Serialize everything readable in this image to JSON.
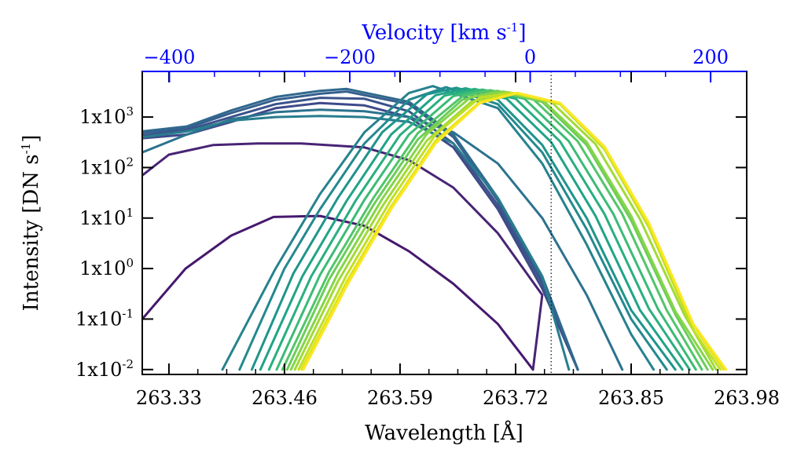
{
  "chart_data": {
    "type": "line",
    "title": "",
    "xlabel": "Wavelength [Å]",
    "ylabel": "Intensity [DN s",
    "ylabel_sup": "-1",
    "ylabel_end": "]",
    "x2label": "Velocity [km s",
    "x2label_sup": "-1",
    "x2label_end": "]",
    "xlim": [
      263.3,
      263.98
    ],
    "ylog": true,
    "ylim": [
      0.008,
      8000
    ],
    "x2lim": [
      -430,
      240
    ],
    "x_ticks": [
      {
        "value": 263.33,
        "label": "263.33"
      },
      {
        "value": 263.46,
        "label": "263.46"
      },
      {
        "value": 263.59,
        "label": "263.59"
      },
      {
        "value": 263.72,
        "label": "263.72"
      },
      {
        "value": 263.85,
        "label": "263.85"
      },
      {
        "value": 263.98,
        "label": "263.98"
      }
    ],
    "y_ticks": [
      {
        "value": 0.01,
        "base": "1x10",
        "exp": "-2"
      },
      {
        "value": 0.1,
        "base": "1x10",
        "exp": "-1"
      },
      {
        "value": 1,
        "base": "1x10",
        "exp": "0"
      },
      {
        "value": 10,
        "base": "1x10",
        "exp": "1"
      },
      {
        "value": 100,
        "base": "1x10",
        "exp": "2"
      },
      {
        "value": 1000,
        "base": "1x10",
        "exp": "3"
      }
    ],
    "x2_ticks": [
      {
        "value": -400,
        "label": "−400"
      },
      {
        "value": -200,
        "label": "−200"
      },
      {
        "value": 0,
        "label": "0"
      },
      {
        "value": 200,
        "label": "200"
      }
    ],
    "reference_line": {
      "x": 263.76,
      "style": "dotted"
    },
    "axis_color_top": "#0000ff",
    "series": [
      {
        "x": [
          263.3,
          263.3487,
          263.4,
          263.4477,
          263.5,
          263.55,
          263.6,
          263.65,
          263.7,
          263.7396
        ],
        "y": [
          0.1,
          1,
          4.5,
          10.5,
          11,
          7,
          2.2,
          0.5,
          0.08,
          0.01
        ],
        "color": "#46186e"
      },
      {
        "x": [
          263.3,
          263.33,
          263.38,
          263.43,
          263.4787,
          263.55,
          263.6,
          263.65,
          263.7,
          263.75,
          263.7396
        ],
        "y": [
          70,
          180,
          280,
          300,
          300,
          250,
          140,
          40,
          5,
          0.3,
          0.01
        ],
        "color": "#482475"
      },
      {
        "x": [
          263.3,
          263.35,
          263.4,
          263.45,
          263.5,
          263.55,
          263.6,
          263.65,
          263.7,
          263.75,
          263.79
        ],
        "y": [
          380,
          450,
          800,
          1500,
          1900,
          1700,
          1000,
          250,
          15,
          0.4,
          0.01
        ],
        "color": "#3e4a89"
      },
      {
        "x": [
          263.3,
          263.35,
          263.4,
          263.45,
          263.5,
          263.55,
          263.6,
          263.65,
          263.7,
          263.75,
          263.79
        ],
        "y": [
          430,
          550,
          1000,
          1800,
          2400,
          2300,
          1300,
          300,
          18,
          0.5,
          0.01
        ],
        "color": "#3b528b"
      },
      {
        "x": [
          263.3,
          263.35,
          263.4,
          263.45,
          263.5,
          263.53,
          263.6,
          263.65,
          263.7,
          263.75,
          263.79
        ],
        "y": [
          480,
          600,
          1200,
          2200,
          2900,
          3200,
          1800,
          400,
          22,
          0.6,
          0.01
        ],
        "color": "#355f8d"
      },
      {
        "x": [
          263.3,
          263.35,
          263.4,
          263.45,
          263.5,
          263.53,
          263.6,
          263.65,
          263.7,
          263.75,
          263.79
        ],
        "y": [
          520,
          650,
          1350,
          2500,
          3300,
          3600,
          2000,
          450,
          25,
          0.7,
          0.01
        ],
        "color": "#31688e"
      },
      {
        "x": [
          263.3,
          263.35,
          263.4,
          263.45,
          263.5,
          263.55,
          263.6,
          263.65,
          263.7,
          263.75,
          263.8,
          263.84
        ],
        "y": [
          200,
          450,
          900,
          1250,
          1400,
          1300,
          1000,
          500,
          120,
          10,
          0.3,
          0.01
        ],
        "color": "#2c728e"
      },
      {
        "x": [
          263.3,
          263.35,
          263.4,
          263.45,
          263.5,
          263.55,
          263.6,
          263.65,
          263.7,
          263.75,
          263.78
        ],
        "y": [
          400,
          520,
          850,
          1000,
          1050,
          1000,
          800,
          300,
          25,
          0.7,
          0.01
        ],
        "color": "#287d8e"
      },
      {
        "x": [
          263.3902,
          263.45,
          263.5,
          263.55,
          263.6,
          263.6268,
          263.7,
          263.75,
          263.8,
          263.85,
          263.8753
        ],
        "y": [
          0.01,
          1,
          30,
          500,
          3000,
          4100,
          1500,
          120,
          3,
          0.05,
          0.01
        ],
        "color": "#26828e"
      },
      {
        "x": [
          263.4095,
          263.46,
          263.5,
          263.55,
          263.6,
          263.6417,
          263.7,
          263.75,
          263.8,
          263.85,
          263.8901
        ],
        "y": [
          0.01,
          1,
          15,
          300,
          2200,
          3900,
          1800,
          200,
          6,
          0.1,
          0.01
        ],
        "color": "#23898e"
      },
      {
        "x": [
          263.4233,
          263.47,
          263.52,
          263.57,
          263.62,
          263.6533,
          263.7,
          263.75,
          263.8,
          263.85,
          263.8997
        ],
        "y": [
          0.01,
          0.8,
          25,
          500,
          2800,
          3800,
          2200,
          280,
          10,
          0.15,
          0.01
        ],
        "color": "#1f948c"
      },
      {
        "x": [
          263.4329,
          263.48,
          263.53,
          263.58,
          263.63,
          263.6637,
          263.71,
          263.76,
          263.81,
          263.86,
          263.9077
        ],
        "y": [
          0.01,
          0.7,
          22,
          450,
          2700,
          3700,
          2300,
          320,
          11,
          0.15,
          0.01
        ],
        "color": "#20a386"
      },
      {
        "x": [
          263.4426,
          263.49,
          263.54,
          263.59,
          263.64,
          263.6739,
          263.72,
          263.77,
          263.82,
          263.87,
          263.9158
        ],
        "y": [
          0.01,
          0.7,
          22,
          440,
          2650,
          3600,
          2300,
          330,
          12,
          0.16,
          0.01
        ],
        "color": "#29af7f"
      },
      {
        "x": [
          263.4512,
          263.5,
          263.55,
          263.6,
          263.65,
          263.6826,
          263.73,
          263.78,
          263.83,
          263.88,
          263.9228
        ],
        "y": [
          0.01,
          0.75,
          23,
          450,
          2600,
          3500,
          2300,
          330,
          12,
          0.16,
          0.01
        ],
        "color": "#3bbb75"
      },
      {
        "x": [
          263.4577,
          263.51,
          263.56,
          263.61,
          263.66,
          263.6913,
          263.74,
          263.79,
          263.84,
          263.89,
          263.9296
        ],
        "y": [
          0.01,
          0.85,
          25,
          480,
          2550,
          3400,
          2250,
          330,
          12,
          0.15,
          0.01
        ],
        "color": "#52c569"
      },
      {
        "x": [
          263.463,
          263.51,
          263.56,
          263.61,
          263.66,
          263.6995,
          263.75,
          263.8,
          263.85,
          263.9,
          263.936
        ],
        "y": [
          0.01,
          0.6,
          18,
          360,
          2200,
          3300,
          2000,
          280,
          9,
          0.12,
          0.01
        ],
        "color": "#6ccd5a"
      },
      {
        "x": [
          263.4673,
          263.52,
          263.57,
          263.62,
          263.67,
          263.7062,
          263.75,
          263.8,
          263.85,
          263.9,
          263.9418
        ],
        "y": [
          0.01,
          0.8,
          24,
          460,
          2500,
          3200,
          2200,
          320,
          11,
          0.14,
          0.01
        ],
        "color": "#86d549"
      },
      {
        "x": [
          263.4716,
          263.52,
          263.57,
          263.62,
          263.67,
          263.7116,
          263.76,
          263.81,
          263.86,
          263.91,
          263.9455
        ],
        "y": [
          0.01,
          0.55,
          17,
          340,
          2000,
          3100,
          2000,
          290,
          9.5,
          0.12,
          0.01
        ],
        "color": "#a2da37"
      },
      {
        "x": [
          263.4759,
          263.53,
          263.58,
          263.63,
          263.68,
          263.7159,
          263.77,
          263.82,
          263.87,
          263.92,
          263.9504
        ],
        "y": [
          0.01,
          0.75,
          23,
          450,
          2450,
          3000,
          1800,
          230,
          6.5,
          0.06,
          0.01
        ],
        "color": "#c0df25"
      },
      {
        "x": [
          263.4791,
          263.53,
          263.58,
          263.63,
          263.68,
          263.7202,
          263.77,
          263.82,
          263.87,
          263.92,
          263.9539
        ],
        "y": [
          0.01,
          0.55,
          17,
          340,
          2000,
          3000,
          1900,
          250,
          7.5,
          0.075,
          0.01
        ],
        "color": "#dfe318"
      },
      {
        "x": [
          263.4813,
          263.53,
          263.58,
          263.63,
          263.68,
          263.7224,
          263.77,
          263.82,
          263.87,
          263.92,
          263.9567
        ],
        "y": [
          0.01,
          0.45,
          15,
          300,
          1900,
          3000,
          1900,
          260,
          8,
          0.08,
          0.01
        ],
        "color": "#fde725"
      }
    ]
  }
}
